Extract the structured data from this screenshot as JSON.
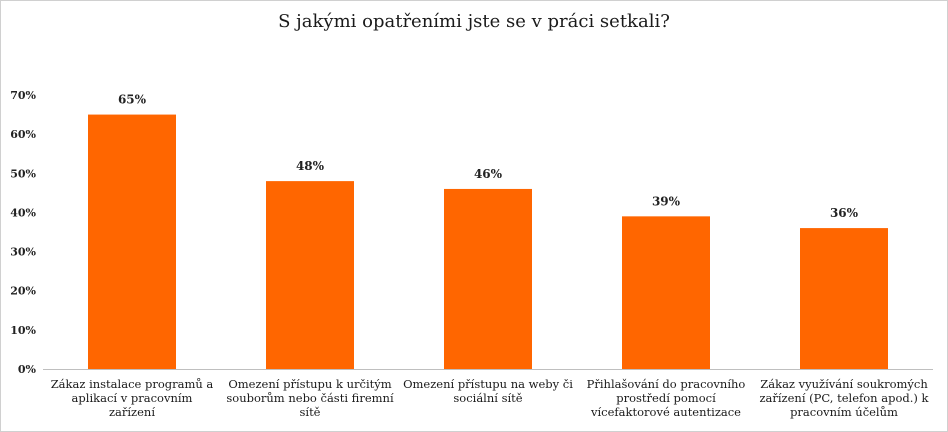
{
  "chart_data": {
    "type": "bar",
    "title": "S jakými opatřeními jste se v práci setkali?",
    "categories": [
      "Zákaz instalace programů a aplikací v pracovním zařízení",
      "Omezení přístupu k určitým souborům nebo části firemní sítě",
      "Omezení přístupu na weby či sociální sítě",
      "Přihlašování do pracovního prostředí pomocí vícefaktorové autentizace",
      "Zákaz využívání soukromých zařízení (PC, telefon apod.) k pracovním účelům"
    ],
    "values": [
      65,
      48,
      46,
      39,
      36
    ],
    "data_labels": [
      "65%",
      "48%",
      "46%",
      "39%",
      "36%"
    ],
    "y_ticks": [
      "0%",
      "10%",
      "20%",
      "30%",
      "40%",
      "50%",
      "60%",
      "70%"
    ],
    "ylim": [
      0,
      70
    ],
    "xlabel": "",
    "ylabel": "",
    "bar_color": "#FF6600",
    "grid": false,
    "legend": "none"
  }
}
